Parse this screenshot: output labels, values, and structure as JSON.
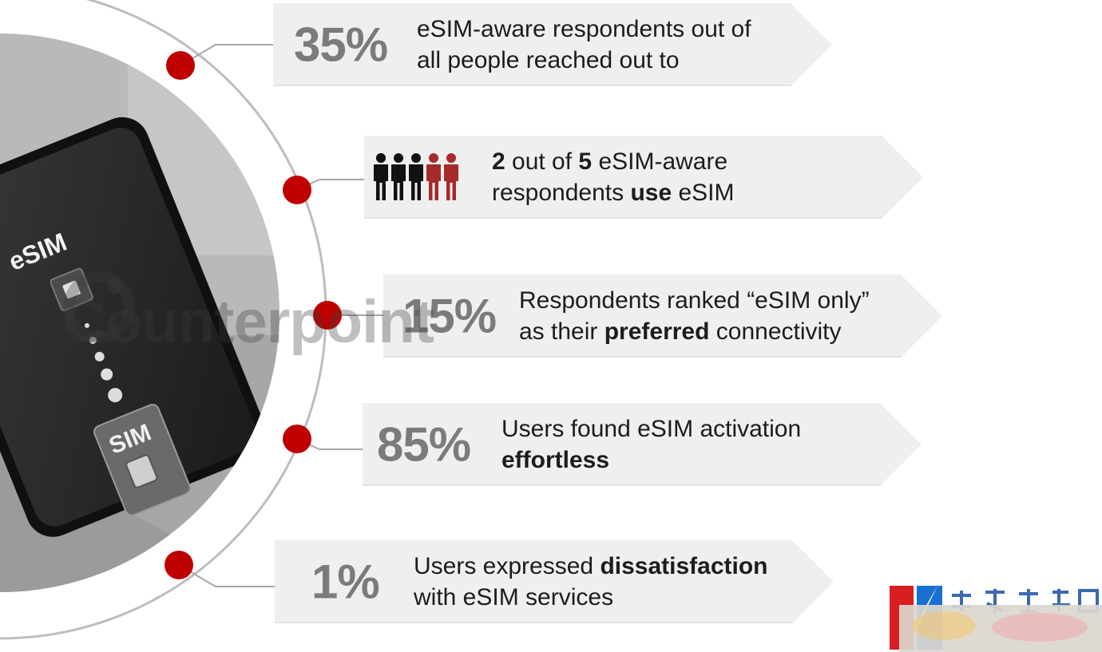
{
  "photo": {
    "screen_label": "eSIM",
    "card_label": "SIM",
    "watermark": "Counterpoint"
  },
  "stats": [
    {
      "stat": "35%",
      "line1": "eSIM-aware respondents out of",
      "line2": "all people reached out to"
    },
    {
      "stat": "",
      "line1_b1": "2",
      "line1_t1": " out of ",
      "line1_b2": "5",
      "line1_t2": " eSIM-aware",
      "line2_t1": "respondents ",
      "line2_b": "use",
      "line2_t2": " eSIM",
      "people_total": 5,
      "people_highlighted": 2
    },
    {
      "stat": "15%",
      "line1": "Respondents ranked “eSIM only”",
      "line2_t1": "as their ",
      "line2_b": "preferred",
      "line2_t2": " connectivity"
    },
    {
      "stat": "85%",
      "line1": "Users found eSIM activation",
      "line2_b": "effortless"
    },
    {
      "stat": "1%",
      "line1_t1": "Users expressed ",
      "line1_b": "dissatisfaction",
      "line2": "with eSIM services"
    }
  ],
  "colors": {
    "accent_red": "#c00000",
    "people_dark": "#111111",
    "people_red": "#a52a2a",
    "banner_bg": "#efefef",
    "stat_gray": "#7b7b7b"
  }
}
